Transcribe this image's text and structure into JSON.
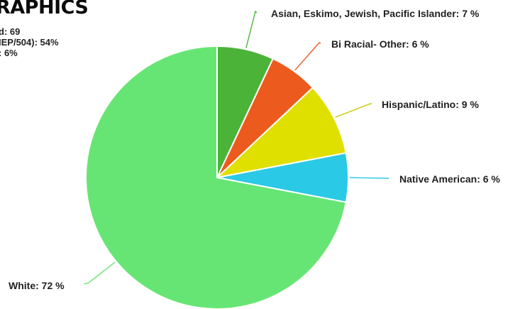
{
  "page": {
    "heading": "RAPHICS",
    "side_stats": [
      "d: 69",
      "IEP/504): 54%",
      ": 6%"
    ]
  },
  "chart_data": {
    "type": "pie",
    "title": "",
    "start_angle_deg": 0,
    "direction": "clockwise",
    "slices": [
      {
        "label": "Asian, Eskimo, Jewish, Pacific Islander: 7 %",
        "value": 7,
        "color": "#4cb339"
      },
      {
        "label": "Bi Racial- Other: 6 %",
        "value": 6,
        "color": "#ed5a1d"
      },
      {
        "label": "Hispanic/Latino: 9 %",
        "value": 9,
        "color": "#dfe000"
      },
      {
        "label": "Native American: 6 %",
        "value": 6,
        "color": "#2ac9e6"
      },
      {
        "label": "White: 72 %",
        "value": 72,
        "color": "#67e574"
      }
    ]
  }
}
